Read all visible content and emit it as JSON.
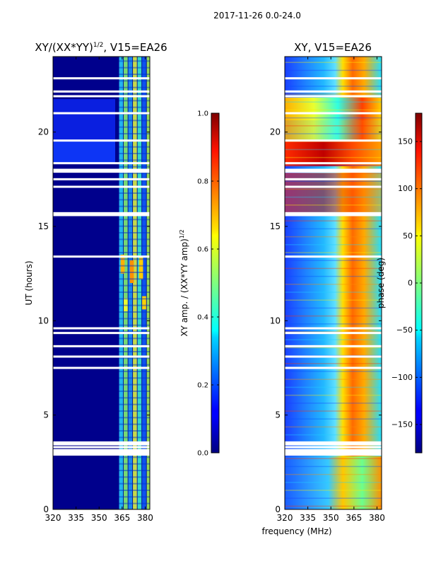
{
  "chart_data": [
    {
      "type": "heatmap",
      "suptitle": "2017-11-26 0.0-24.0",
      "title_main": "XY/(XX*YY)",
      "title_sup": "1/2",
      "title_rest": ", V15=EA26",
      "ylabel": "UT (hours)",
      "xlim": [
        320,
        383
      ],
      "ylim": [
        0,
        24
      ],
      "xticks": [
        "320",
        "335",
        "350",
        "365",
        "380"
      ],
      "xtick_values": [
        320,
        335,
        350,
        365,
        380
      ],
      "yticks": [
        "0",
        "5",
        "10",
        "15",
        "20"
      ],
      "ytick_values": [
        0,
        5,
        10,
        15,
        20
      ],
      "colorbar": {
        "label_main": "XY amp. / (XX*YY amp)",
        "label_sup": "1/2",
        "range": [
          0.0,
          1.0
        ],
        "ticks": [
          "0.0",
          "0.2",
          "0.4",
          "0.6",
          "0.8",
          "1.0"
        ],
        "tick_values": [
          0.0,
          0.2,
          0.4,
          0.6,
          0.8,
          1.0
        ]
      },
      "description": "Background near 0.0 below ~363 MHz; bands 363-383 MHz range 0.3-0.8; 18-21 UT region ~0.15 at 320-363 MHz"
    },
    {
      "type": "heatmap",
      "title": "XY, V15=EA26",
      "xlabel": "frequency (MHz)",
      "xlim": [
        320,
        383
      ],
      "ylim": [
        0,
        24
      ],
      "xticks": [
        "320",
        "335",
        "350",
        "365",
        "380"
      ],
      "xtick_values": [
        320,
        335,
        350,
        365,
        380
      ],
      "yticks": [
        "0",
        "5",
        "10",
        "15",
        "20"
      ],
      "ytick_values": [
        0,
        5,
        10,
        15,
        20
      ],
      "colorbar": {
        "label": "phase (deg)",
        "range": [
          -180,
          180
        ],
        "ticks": [
          "150",
          "100",
          "50",
          "0",
          "−50",
          "−100",
          "−150"
        ],
        "tick_values": [
          150,
          100,
          50,
          0,
          -50,
          -100,
          -150
        ]
      },
      "description": "Phase ~-150 deg at low frequencies, trending to ~+150 deg near 360-383 MHz below 16 UT; 18-21 UT mixed +100 to +180"
    }
  ],
  "gaps_ut": [
    3.3,
    3.45,
    3.55,
    7.5,
    8.1,
    8.65,
    9.35,
    9.6,
    13.4,
    15.6,
    15.7,
    17.1,
    17.5,
    17.9,
    18.0,
    18.35,
    19.55,
    21.0,
    21.9,
    22.15,
    22.85
  ],
  "big_gap_ut": [
    2.85,
    3.2
  ]
}
